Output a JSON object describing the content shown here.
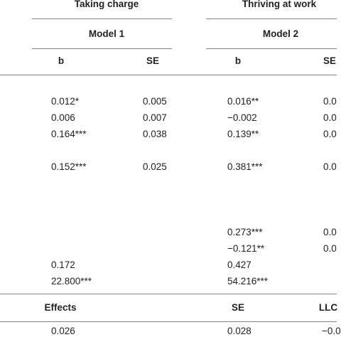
{
  "header": {
    "groups": [
      "Taking charge",
      "Thriving at work"
    ],
    "models": [
      "Model 1",
      "Model 2"
    ],
    "columns": [
      "b",
      "SE",
      "b",
      "SE"
    ]
  },
  "table": {
    "rows": [
      [
        "0.012*",
        "0.005",
        "0.016**",
        "0.0"
      ],
      [
        "0.006",
        "0.007",
        "−0.002",
        "0.0"
      ],
      [
        "0.164***",
        "0.038",
        "0.139**",
        "0.0"
      ],
      [
        "0.152***",
        "0.025",
        "0.381***",
        "0.0"
      ],
      [
        null,
        null,
        "0.273***",
        "0.0"
      ],
      [
        null,
        null,
        "−0.121**",
        "0.0"
      ],
      [
        "0.172",
        null,
        "0.427",
        null
      ],
      [
        "22.800***",
        null,
        "54.216***",
        null
      ]
    ]
  },
  "effects": {
    "columns": [
      "Effects",
      "SE",
      "LLC"
    ],
    "rows": [
      [
        "0.026",
        "0.028",
        "−0.0"
      ]
    ]
  }
}
